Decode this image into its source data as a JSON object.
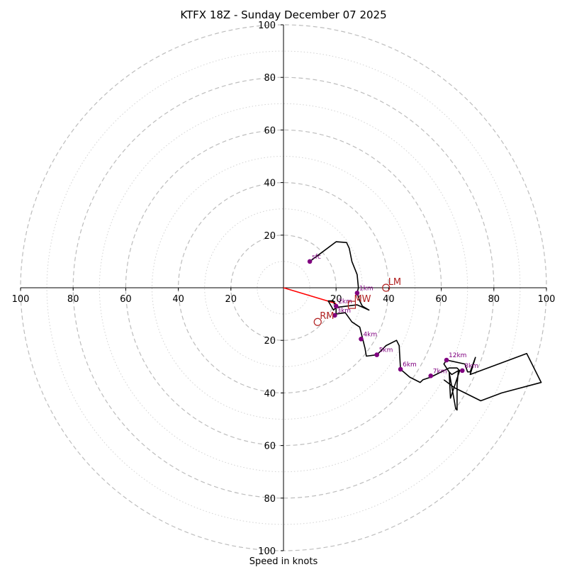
{
  "chart_data": {
    "type": "scatter",
    "subtype": "hodograph",
    "title": "KTFX 18Z - Sunday December 07 2025",
    "xlabel": "Speed in knots",
    "range": [
      -100,
      100
    ],
    "major_ring_step": 20,
    "minor_ring_step": 10,
    "x_tick_labels": [
      "100",
      "80",
      "60",
      "40",
      "20",
      "20",
      "40",
      "60",
      "80",
      "100"
    ],
    "y_tick_labels": [
      "100",
      "80",
      "60",
      "40",
      "20",
      "20",
      "40",
      "60",
      "80",
      "100"
    ],
    "colors": {
      "trace": "#000000",
      "height_marker": "#800080",
      "motion_marker": "#b22222",
      "shear_vector": "#ff0000"
    },
    "trace": [
      [
        10,
        10
      ],
      [
        14,
        13
      ],
      [
        20,
        17.5
      ],
      [
        24,
        17.2
      ],
      [
        25,
        15
      ],
      [
        26,
        10
      ],
      [
        28,
        5
      ],
      [
        28.5,
        0
      ],
      [
        28,
        -2
      ],
      [
        29,
        -5
      ],
      [
        30,
        -7
      ],
      [
        32.5,
        -8.5
      ],
      [
        28,
        -6.5
      ],
      [
        20,
        -7.5
      ],
      [
        19,
        -8.5
      ],
      [
        17,
        -5
      ],
      [
        19,
        -5
      ],
      [
        20,
        -7.5
      ],
      [
        20,
        -10
      ],
      [
        23.5,
        -9.5
      ],
      [
        26,
        -13
      ],
      [
        29,
        -15
      ],
      [
        30,
        -19
      ],
      [
        31,
        -23
      ],
      [
        31.5,
        -26
      ],
      [
        35.5,
        -25.5
      ],
      [
        36,
        -25
      ],
      [
        39,
        -22
      ],
      [
        43,
        -20
      ],
      [
        44,
        -22
      ],
      [
        44.5,
        -31
      ],
      [
        48,
        -34
      ],
      [
        52,
        -36
      ],
      [
        53,
        -35
      ],
      [
        56,
        -34
      ],
      [
        58,
        -33
      ],
      [
        63,
        -30.5
      ],
      [
        66,
        -30.5
      ],
      [
        67,
        -31.5
      ],
      [
        63.5,
        -42
      ],
      [
        63,
        -32
      ],
      [
        64,
        -33
      ],
      [
        66.5,
        -31.5
      ],
      [
        66,
        -37
      ],
      [
        66,
        -46.5
      ],
      [
        65.5,
        -46
      ],
      [
        63,
        -32
      ],
      [
        61,
        -29
      ],
      [
        62,
        -27.5
      ],
      [
        69,
        -29
      ],
      [
        70,
        -32
      ],
      [
        71,
        -32
      ],
      [
        73,
        -26.5
      ],
      [
        71,
        -33
      ],
      [
        92.5,
        -25
      ],
      [
        98,
        -36
      ],
      [
        83,
        -40
      ],
      [
        75,
        -43
      ],
      [
        65,
        -38
      ],
      [
        61,
        -35
      ]
    ],
    "height_markers": [
      {
        "label": "sfc",
        "x": 10,
        "y": 10
      },
      {
        "label": "1km",
        "x": 28,
        "y": -2
      },
      {
        "label": "2km",
        "x": 20,
        "y": -7
      },
      {
        "label": "3km",
        "x": 19.5,
        "y": -10.5
      },
      {
        "label": "4km",
        "x": 29.5,
        "y": -19.5
      },
      {
        "label": "5km",
        "x": 35.5,
        "y": -25.5
      },
      {
        "label": "6km",
        "x": 44.5,
        "y": -31
      },
      {
        "label": "7km",
        "x": 56,
        "y": -33.5
      },
      {
        "label": "8km",
        "x": 68,
        "y": -31.5
      },
      {
        "label": "12km",
        "x": 62,
        "y": -27.5
      }
    ],
    "motion_markers": [
      {
        "label": "LM",
        "x": 39,
        "y": 0,
        "shape": "circle"
      },
      {
        "label": "MW",
        "x": 26,
        "y": -6.5,
        "shape": "square"
      },
      {
        "label": "RM",
        "x": 13,
        "y": -13,
        "shape": "circle"
      }
    ],
    "shear_vector": {
      "from": [
        0,
        0
      ],
      "to": [
        20,
        -6
      ]
    },
    "grid": "on",
    "legend": "none"
  }
}
